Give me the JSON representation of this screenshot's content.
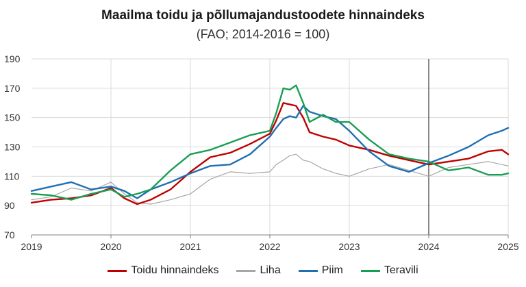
{
  "chart_data": {
    "type": "line",
    "title": "Maailma toidu ja põllumajandustoodete hinnaindeks",
    "subtitle": "(FAO; 2014-2016 = 100)",
    "xlabel": "",
    "ylabel": "",
    "ylim": [
      70,
      190
    ],
    "yticks": [
      70,
      90,
      110,
      130,
      150,
      170,
      190
    ],
    "xlim": [
      2019.0,
      2025.0
    ],
    "xticks": [
      "2019",
      "2020",
      "2021",
      "2022",
      "2023",
      "2024",
      "2025"
    ],
    "vertical_gridlines": [
      2020,
      2021,
      2022,
      2023,
      2024,
      2025
    ],
    "highlight_line": 2024,
    "legend_position": "bottom",
    "x": [
      2019.0,
      2019.25,
      2019.5,
      2019.75,
      2020.0,
      2020.17,
      2020.33,
      2020.5,
      2020.75,
      2021.0,
      2021.25,
      2021.5,
      2021.75,
      2022.0,
      2022.08,
      2022.17,
      2022.25,
      2022.33,
      2022.42,
      2022.5,
      2022.67,
      2022.83,
      2023.0,
      2023.25,
      2023.5,
      2023.75,
      2024.0,
      2024.25,
      2024.5,
      2024.75,
      2024.92,
      2025.0
    ],
    "series": [
      {
        "name": "Toidu hinnaindeks",
        "color": "#c00000",
        "values": [
          92,
          94,
          95,
          97,
          102,
          95,
          91,
          94,
          101,
          113,
          123,
          126,
          132,
          139,
          148,
          160,
          159,
          158,
          150,
          140,
          137,
          135,
          131,
          128,
          124,
          121,
          118,
          120,
          122,
          127,
          128,
          125
        ]
      },
      {
        "name": "Liha",
        "color": "#a6a6a6",
        "values": [
          94,
          96,
          102,
          100,
          106,
          98,
          92,
          91,
          94,
          98,
          108,
          113,
          112,
          113,
          118,
          121,
          124,
          125,
          121,
          120,
          115,
          112,
          110,
          115,
          118,
          114,
          110,
          116,
          118,
          120,
          118,
          117
        ]
      },
      {
        "name": "Piim",
        "color": "#1f6fb2",
        "values": [
          100,
          103,
          106,
          101,
          103,
          100,
          95,
          101,
          106,
          112,
          117,
          118,
          125,
          137,
          143,
          149,
          151,
          150,
          158,
          154,
          151,
          149,
          141,
          127,
          117,
          113,
          119,
          124,
          130,
          138,
          141,
          143
        ]
      },
      {
        "name": "Teravili",
        "color": "#1a9e52",
        "values": [
          98,
          97,
          94,
          98,
          101,
          96,
          98,
          101,
          114,
          125,
          128,
          133,
          138,
          141,
          153,
          170,
          169,
          172,
          160,
          147,
          152,
          147,
          147,
          135,
          125,
          122,
          120,
          114,
          116,
          111,
          111,
          112
        ]
      }
    ]
  }
}
